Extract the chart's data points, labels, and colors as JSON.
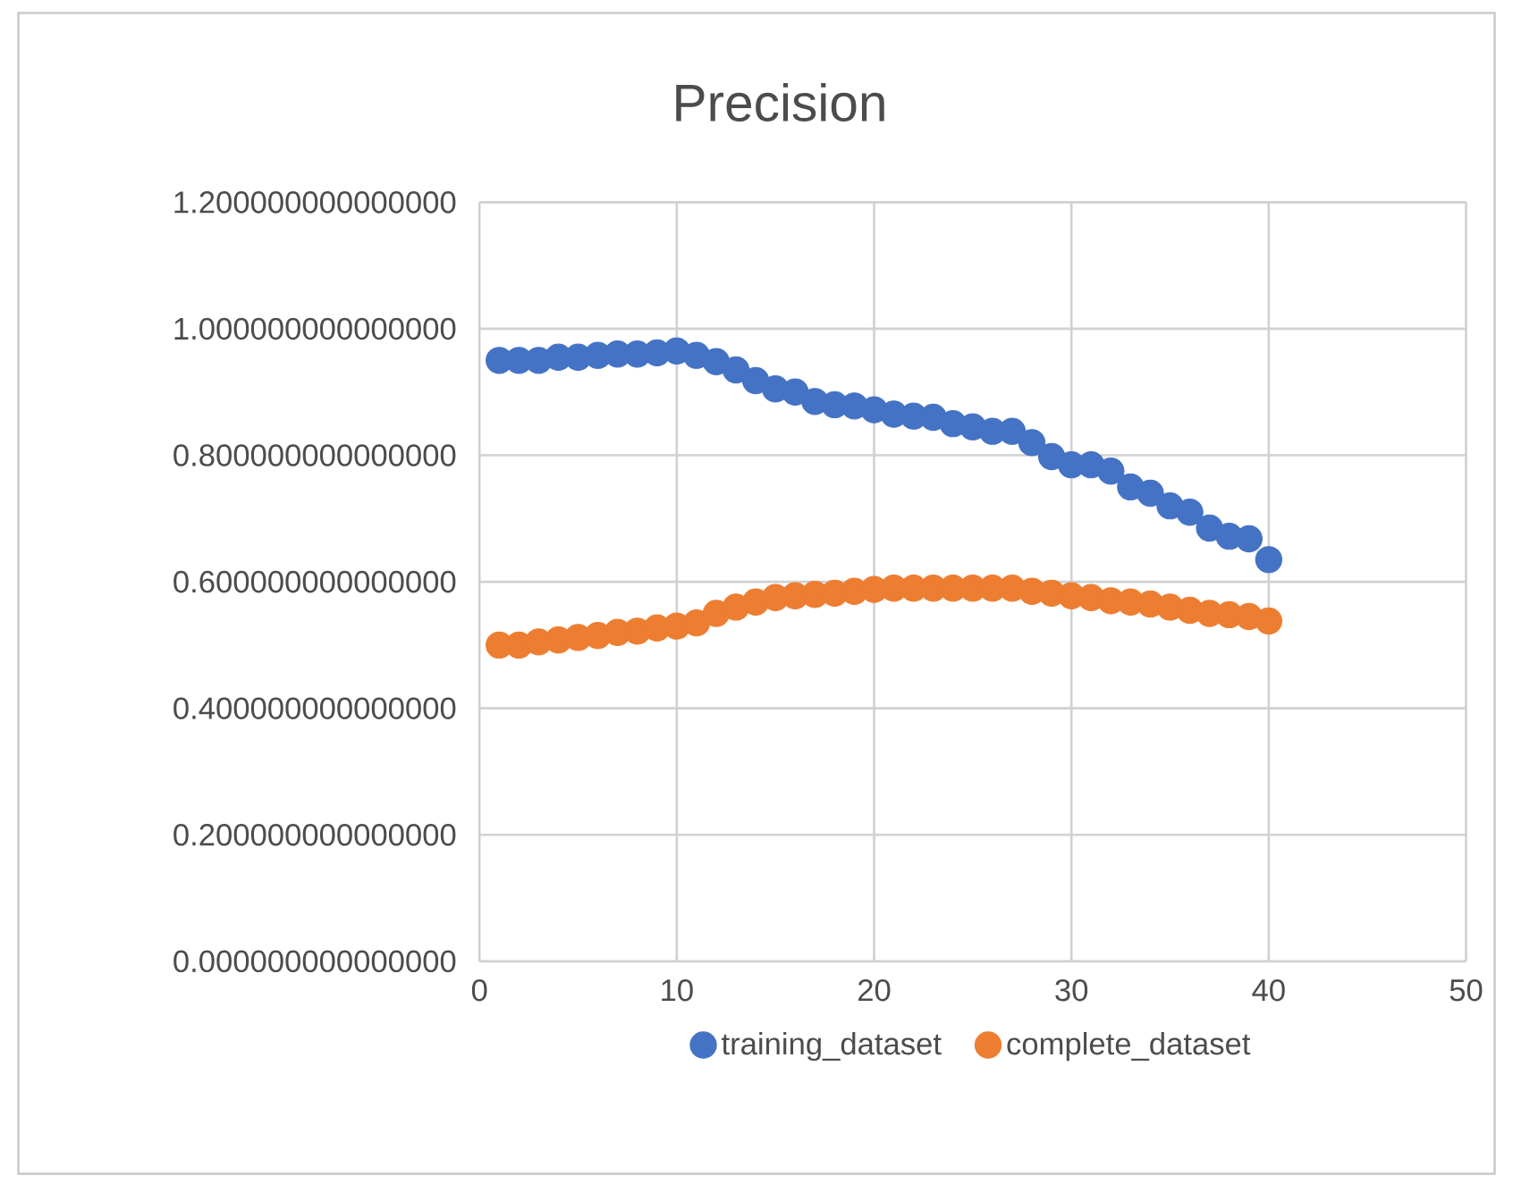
{
  "chart_data": {
    "type": "scatter",
    "title": "Precision",
    "x": [
      1,
      2,
      3,
      4,
      5,
      6,
      7,
      8,
      9,
      10,
      11,
      12,
      13,
      14,
      15,
      16,
      17,
      18,
      19,
      20,
      21,
      22,
      23,
      24,
      25,
      26,
      27,
      28,
      29,
      30,
      31,
      32,
      33,
      34,
      35,
      36,
      37,
      38,
      39,
      40
    ],
    "series": [
      {
        "name": "training_dataset",
        "color": "#4472c4",
        "values": [
          0.95,
          0.95,
          0.95,
          0.955,
          0.955,
          0.958,
          0.96,
          0.96,
          0.962,
          0.965,
          0.958,
          0.948,
          0.935,
          0.918,
          0.905,
          0.9,
          0.885,
          0.88,
          0.878,
          0.872,
          0.865,
          0.862,
          0.86,
          0.85,
          0.845,
          0.838,
          0.838,
          0.82,
          0.798,
          0.785,
          0.785,
          0.775,
          0.75,
          0.74,
          0.72,
          0.71,
          0.685,
          0.672,
          0.668,
          0.635
        ]
      },
      {
        "name": "complete_dataset",
        "color": "#ed7d31",
        "values": [
          0.5,
          0.5,
          0.505,
          0.508,
          0.512,
          0.515,
          0.52,
          0.522,
          0.527,
          0.53,
          0.535,
          0.55,
          0.56,
          0.568,
          0.575,
          0.578,
          0.58,
          0.582,
          0.585,
          0.588,
          0.59,
          0.59,
          0.59,
          0.59,
          0.59,
          0.59,
          0.59,
          0.585,
          0.582,
          0.578,
          0.575,
          0.57,
          0.568,
          0.565,
          0.56,
          0.555,
          0.55,
          0.548,
          0.545,
          0.538
        ]
      }
    ],
    "xlim": [
      0,
      50
    ],
    "xticks": [
      0,
      10,
      20,
      30,
      40,
      50
    ],
    "ylim": [
      0,
      1.2
    ],
    "yticks": [
      {
        "value": 0,
        "label": "0.000000000000000"
      },
      {
        "value": 0.2,
        "label": "0.200000000000000"
      },
      {
        "value": 0.4,
        "label": "0.400000000000000"
      },
      {
        "value": 0.6,
        "label": "0.600000000000000"
      },
      {
        "value": 0.8,
        "label": "0.800000000000000"
      },
      {
        "value": 1.0,
        "label": "1.000000000000000"
      },
      {
        "value": 1.2,
        "label": "1.200000000000000"
      }
    ],
    "grid": true,
    "legend": "bottom"
  }
}
